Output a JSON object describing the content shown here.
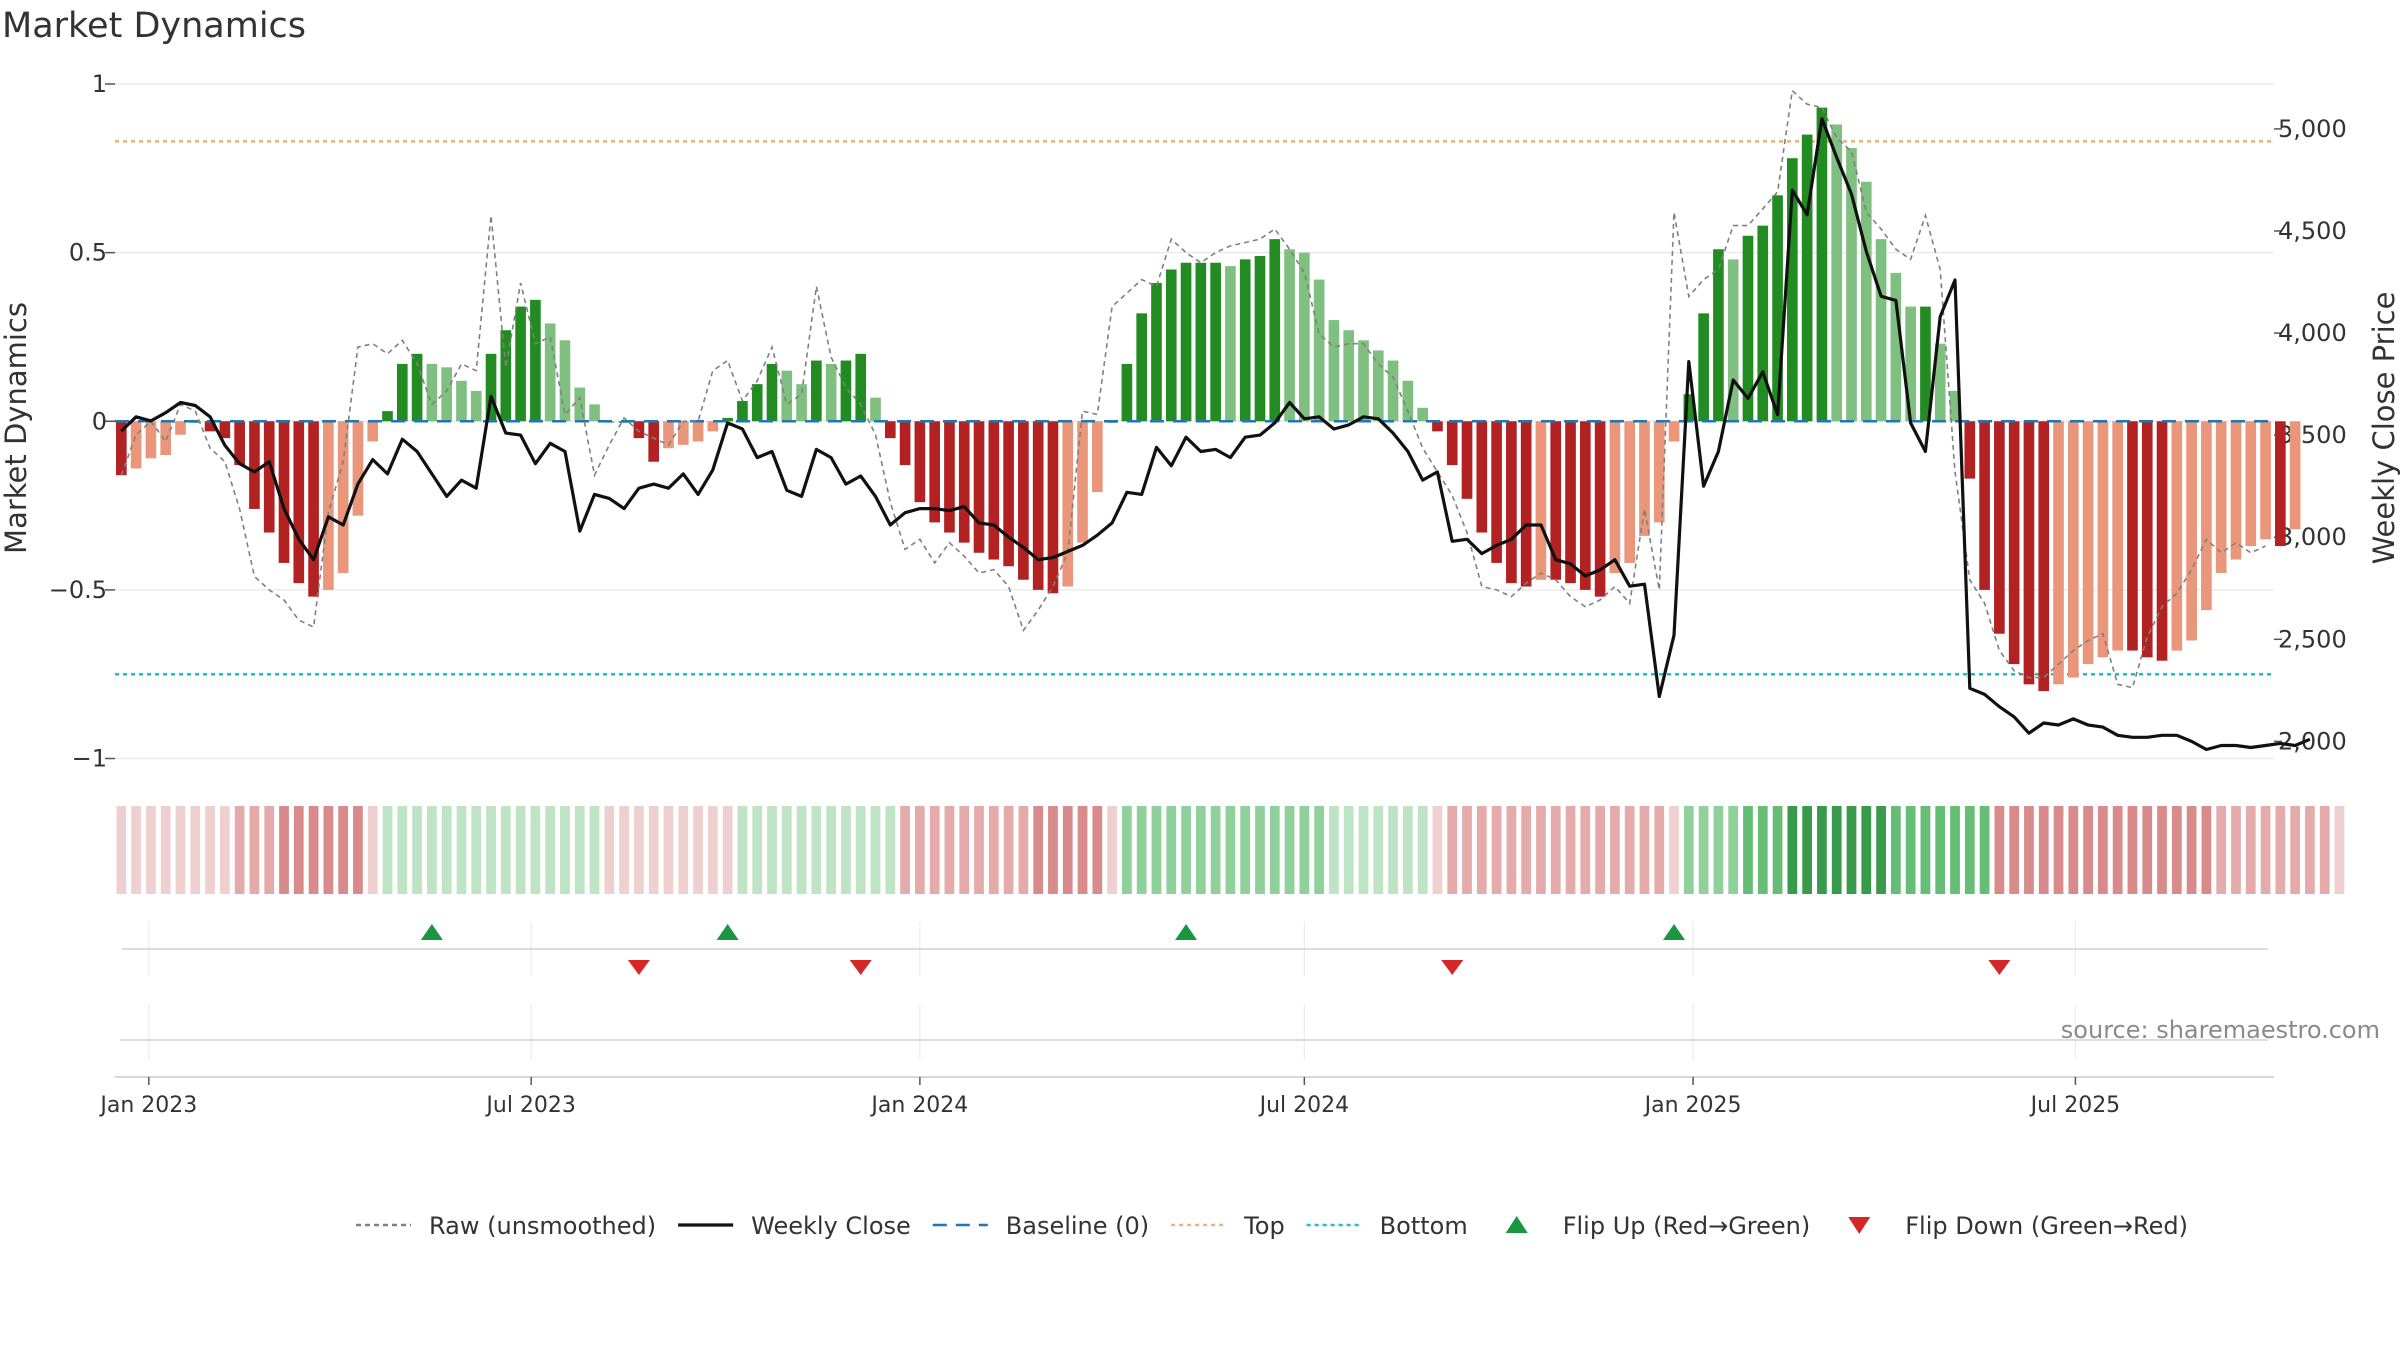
{
  "chart_title": "Market Dynamics",
  "source_text": "source: sharemaestro.com",
  "chart_data": {
    "type": "bar",
    "title": "Market Dynamics",
    "ylabel": "Market Dynamics",
    "y2label": "Weekly Close Price",
    "ylim": [
      -1.04,
      1.0
    ],
    "y2lim": [
      1850,
      5220
    ],
    "yticks": [
      {
        "v": 1,
        "label": "1"
      },
      {
        "v": 0.5,
        "label": "0.5"
      },
      {
        "v": 0,
        "label": "0"
      },
      {
        "v": -0.5,
        "label": "−0.5"
      },
      {
        "v": -1,
        "label": "−1"
      }
    ],
    "y2ticks": [
      {
        "v": 5000,
        "label": "5,000"
      },
      {
        "v": 4500,
        "label": "4,500"
      },
      {
        "v": 4000,
        "label": "4,000"
      },
      {
        "v": 3500,
        "label": "3,500"
      },
      {
        "v": 3000,
        "label": "3,000"
      },
      {
        "v": 2500,
        "label": "2,500"
      },
      {
        "v": 2000,
        "label": "2,000"
      }
    ],
    "start_date": "2022-12-19",
    "x_range": [
      "2022-12-16",
      "2025-10-03"
    ],
    "xticks": [
      {
        "date": "2023-01-01",
        "label": "Jan 2023"
      },
      {
        "date": "2023-07-01",
        "label": "Jul 2023"
      },
      {
        "date": "2024-01-01",
        "label": "Jan 2024"
      },
      {
        "date": "2024-07-01",
        "label": "Jul 2024"
      },
      {
        "date": "2025-01-01",
        "label": "Jan 2025"
      },
      {
        "date": "2025-07-01",
        "label": "Jul 2025"
      }
    ],
    "top_level": 0.83,
    "bottom_level": -0.75,
    "grid": true,
    "legend_position": "bottom",
    "colors": {
      "strong_green": "#228b22",
      "light_green": "#7fbf7f",
      "strong_red": "#b22222",
      "light_red": "#e9967a",
      "raw": "#808080",
      "close": "#111111",
      "baseline": "#1f77b4",
      "top": "#e8b07a",
      "bottom": "#17becf",
      "flip_up": "#1a9641",
      "flip_down": "#d62728"
    },
    "series": [
      {
        "name": "Market Dynamics (smoothed)",
        "values": [
          -0.16,
          -0.14,
          -0.11,
          -0.1,
          -0.04,
          0.0,
          -0.03,
          -0.05,
          -0.13,
          -0.26,
          -0.33,
          -0.42,
          -0.48,
          -0.52,
          -0.5,
          -0.45,
          -0.28,
          -0.06,
          0.03,
          0.17,
          0.2,
          0.17,
          0.16,
          0.12,
          0.09,
          0.2,
          0.27,
          0.34,
          0.36,
          0.29,
          0.24,
          0.1,
          0.05,
          0.0,
          0.0,
          -0.05,
          -0.12,
          -0.08,
          -0.07,
          -0.06,
          -0.03,
          0.01,
          0.06,
          0.11,
          0.17,
          0.15,
          0.11,
          0.18,
          0.17,
          0.18,
          0.2,
          0.07,
          -0.05,
          -0.13,
          -0.24,
          -0.3,
          -0.33,
          -0.36,
          -0.39,
          -0.41,
          -0.43,
          -0.47,
          -0.5,
          -0.51,
          -0.49,
          -0.36,
          -0.21,
          0.0,
          0.17,
          0.32,
          0.41,
          0.45,
          0.47,
          0.47,
          0.47,
          0.46,
          0.48,
          0.49,
          0.54,
          0.51,
          0.5,
          0.42,
          0.3,
          0.27,
          0.24,
          0.21,
          0.18,
          0.12,
          0.04,
          -0.03,
          -0.13,
          -0.23,
          -0.33,
          -0.42,
          -0.48,
          -0.49,
          -0.47,
          -0.47,
          -0.48,
          -0.5,
          -0.52,
          -0.45,
          -0.42,
          -0.34,
          -0.3,
          -0.06,
          0.08,
          0.32,
          0.51,
          0.48,
          0.55,
          0.58,
          0.67,
          0.78,
          0.85,
          0.93,
          0.88,
          0.81,
          0.71,
          0.54,
          0.44,
          0.34,
          0.34,
          0.23,
          0.09,
          -0.17,
          -0.5,
          -0.63,
          -0.72,
          -0.78,
          -0.8,
          -0.78,
          -0.76,
          -0.72,
          -0.7,
          -0.68,
          -0.68,
          -0.7,
          -0.71,
          -0.68,
          -0.65,
          -0.56,
          -0.45,
          -0.41,
          -0.37,
          -0.35,
          -0.37,
          -0.32
        ]
      },
      {
        "name": "Raw (unsmoothed)",
        "values": [
          -0.16,
          -0.04,
          0.0,
          -0.06,
          0.05,
          0.03,
          -0.08,
          -0.12,
          -0.26,
          -0.46,
          -0.5,
          -0.53,
          -0.59,
          -0.61,
          -0.27,
          -0.12,
          0.22,
          0.23,
          0.2,
          0.24,
          0.17,
          0.05,
          0.09,
          0.17,
          0.15,
          0.61,
          0.16,
          0.41,
          0.23,
          0.25,
          0.02,
          0.07,
          -0.16,
          -0.07,
          0.01,
          -0.03,
          -0.05,
          -0.07,
          0.0,
          0.0,
          0.15,
          0.18,
          0.06,
          0.12,
          0.22,
          0.05,
          0.08,
          0.4,
          0.19,
          0.1,
          0.05,
          -0.04,
          -0.24,
          -0.38,
          -0.35,
          -0.42,
          -0.36,
          -0.4,
          -0.45,
          -0.44,
          -0.49,
          -0.62,
          -0.56,
          -0.49,
          -0.39,
          0.03,
          0.02,
          0.34,
          0.38,
          0.42,
          0.4,
          0.54,
          0.5,
          0.47,
          0.5,
          0.52,
          0.53,
          0.54,
          0.57,
          0.51,
          0.44,
          0.26,
          0.22,
          0.23,
          0.23,
          0.17,
          0.13,
          0.03,
          -0.08,
          -0.15,
          -0.22,
          -0.33,
          -0.49,
          -0.5,
          -0.52,
          -0.48,
          -0.45,
          -0.47,
          -0.52,
          -0.55,
          -0.53,
          -0.49,
          -0.54,
          -0.26,
          -0.5,
          0.62,
          0.37,
          0.42,
          0.45,
          0.58,
          0.58,
          0.63,
          0.68,
          0.98,
          0.94,
          0.93,
          0.84,
          0.8,
          0.62,
          0.57,
          0.51,
          0.48,
          0.61,
          0.45,
          -0.15,
          -0.47,
          -0.54,
          -0.68,
          -0.74,
          -0.76,
          -0.76,
          -0.72,
          -0.68,
          -0.65,
          -0.63,
          -0.78,
          -0.79,
          -0.64,
          -0.55,
          -0.51,
          -0.44,
          -0.35,
          -0.39,
          -0.36,
          -0.39,
          -0.37
        ]
      },
      {
        "name": "Weekly Close",
        "axis": "right",
        "values": [
          3520,
          3590,
          3570,
          3610,
          3660,
          3645,
          3590,
          3450,
          3360,
          3320,
          3370,
          3140,
          2990,
          2890,
          3100,
          3060,
          3260,
          3380,
          3310,
          3480,
          3420,
          3310,
          3200,
          3280,
          3240,
          3690,
          3510,
          3500,
          3360,
          3460,
          3420,
          3030,
          3210,
          3190,
          3140,
          3240,
          3260,
          3240,
          3310,
          3210,
          3330,
          3560,
          3530,
          3390,
          3420,
          3230,
          3200,
          3430,
          3390,
          3260,
          3300,
          3200,
          3060,
          3120,
          3140,
          3140,
          3130,
          3150,
          3070,
          3060,
          3000,
          2950,
          2890,
          2900,
          2930,
          2960,
          3010,
          3070,
          3220,
          3210,
          3440,
          3350,
          3490,
          3420,
          3430,
          3390,
          3490,
          3500,
          3560,
          3660,
          3580,
          3590,
          3530,
          3550,
          3590,
          3580,
          3510,
          3420,
          3280,
          3320,
          2980,
          2990,
          2920,
          2960,
          2990,
          3060,
          3060,
          2890,
          2870,
          2810,
          2840,
          2890,
          2760,
          2770,
          2220,
          2520,
          3860,
          3250,
          3420,
          3770,
          3680,
          3810,
          3600,
          4700,
          4580,
          5050,
          4860,
          4680,
          4400,
          4180,
          4160,
          3560,
          3420,
          4080,
          4260,
          2260,
          2230,
          2170,
          2120,
          2040,
          2090,
          2080,
          2110,
          2080,
          2070,
          2030,
          2020,
          2020,
          2030,
          2030,
          2000,
          1960,
          1980,
          1980,
          1970,
          1980,
          1990,
          1980,
          2010
        ]
      }
    ],
    "regime_strip": [
      "r3",
      "r3",
      "r3",
      "r3",
      "r3",
      "r3",
      "r3",
      "r3",
      "r4",
      "r4",
      "r4",
      "r5",
      "r5",
      "r5",
      "r5",
      "r5",
      "r5",
      "r3",
      "g2",
      "g2",
      "g2",
      "g2",
      "g2",
      "g2",
      "g2",
      "g2",
      "g2",
      "g2",
      "g2",
      "g2",
      "g2",
      "g2",
      "g2",
      "r3",
      "r3",
      "r3",
      "r3",
      "r3",
      "r3",
      "r3",
      "r3",
      "r3",
      "g2",
      "g2",
      "g2",
      "g2",
      "g2",
      "g2",
      "g2",
      "g2",
      "g2",
      "g2",
      "g2",
      "r4",
      "r4",
      "r4",
      "r4",
      "r4",
      "r4",
      "r4",
      "r4",
      "r4",
      "r5",
      "r5",
      "r5",
      "r5",
      "r5",
      "r3",
      "g3",
      "g3",
      "g3",
      "g3",
      "g3",
      "g3",
      "g3",
      "g3",
      "g3",
      "g3",
      "g3",
      "g3",
      "g3",
      "g3",
      "g2",
      "g2",
      "g2",
      "g2",
      "g2",
      "g2",
      "g2",
      "r3",
      "r4",
      "r4",
      "r4",
      "r4",
      "r4",
      "r4",
      "r4",
      "r4",
      "r4",
      "r4",
      "r4",
      "r4",
      "r4",
      "r4",
      "r4",
      "r3",
      "g3",
      "g3",
      "g3",
      "g3",
      "g4",
      "g4",
      "g4",
      "g5",
      "g5",
      "g5",
      "g5",
      "g5",
      "g5",
      "g5",
      "g4",
      "g4",
      "g4",
      "g4",
      "g4",
      "g4",
      "g4",
      "r5",
      "r5",
      "r5",
      "r5",
      "r5",
      "r5",
      "r5",
      "r5",
      "r5",
      "r5",
      "r5",
      "r5",
      "r5",
      "r5",
      "r5",
      "r4",
      "r4",
      "r4",
      "r4",
      "r4",
      "r4",
      "r4",
      "r4",
      "r3"
    ],
    "regime_colors": {
      "r3": "#efd0d0",
      "r4": "#e5abab",
      "r5": "#d98a8a",
      "g2": "#bfe3c5",
      "g3": "#8fd09b",
      "g4": "#66bd76",
      "g5": "#3a9a4c"
    },
    "flips": [
      {
        "type": "up",
        "date": "2023-05-15"
      },
      {
        "type": "down",
        "date": "2023-08-21"
      },
      {
        "type": "up",
        "date": "2023-10-02"
      },
      {
        "type": "down",
        "date": "2023-12-04"
      },
      {
        "type": "up",
        "date": "2024-05-06"
      },
      {
        "type": "down",
        "date": "2024-09-09"
      },
      {
        "type": "up",
        "date": "2024-12-23"
      },
      {
        "type": "down",
        "date": "2025-05-26"
      }
    ],
    "legend": [
      {
        "label": "Raw (unsmoothed)",
        "kind": "line",
        "color": "#808080",
        "dash": "5,4"
      },
      {
        "label": "Weekly Close",
        "kind": "line",
        "color": "#111111",
        "dash": ""
      },
      {
        "label": "Baseline (0)",
        "kind": "line",
        "color": "#1f77b4",
        "dash": "14,9"
      },
      {
        "label": "Top",
        "kind": "line",
        "color": "#e8b07a",
        "dash": "4,4"
      },
      {
        "label": "Bottom",
        "kind": "line",
        "color": "#17becf",
        "dash": "4,4"
      },
      {
        "label": "Flip Up (Red→Green)",
        "kind": "tri-up",
        "color": "#1a9641"
      },
      {
        "label": "Flip Down (Green→Red)",
        "kind": "tri-down",
        "color": "#d62728"
      }
    ]
  }
}
